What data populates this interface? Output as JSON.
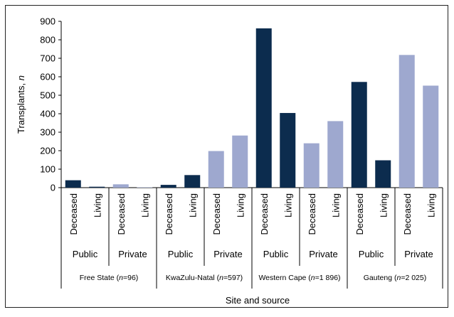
{
  "chart_data": {
    "type": "bar",
    "xlabel": "Site and source",
    "ylabel": "Transplants, n",
    "ylim": [
      0,
      900
    ],
    "yticks": [
      0,
      100,
      200,
      300,
      400,
      500,
      600,
      700,
      800,
      900
    ],
    "grid": false,
    "legend": "none",
    "colors": {
      "public": "#0c2c4e",
      "private": "#9ea8cf"
    },
    "regions": [
      {
        "label_prefix": "Free State (",
        "label_n": "n",
        "label_suffix": "=96)",
        "sectors": [
          {
            "name": "Public",
            "color_key": "public",
            "bars": [
              {
                "source": "Deceased",
                "value": 40
              },
              {
                "source": "Living",
                "value": 5
              }
            ]
          },
          {
            "name": "Private",
            "color_key": "private",
            "bars": [
              {
                "source": "Deceased",
                "value": 18
              },
              {
                "source": "Living",
                "value": 2
              }
            ]
          }
        ]
      },
      {
        "label_prefix": "KwaZulu-Natal (",
        "label_n": "n",
        "label_suffix": "=597)",
        "sectors": [
          {
            "name": "Public",
            "color_key": "public",
            "bars": [
              {
                "source": "Deceased",
                "value": 15
              },
              {
                "source": "Living",
                "value": 68
              }
            ]
          },
          {
            "name": "Private",
            "color_key": "private",
            "bars": [
              {
                "source": "Deceased",
                "value": 198
              },
              {
                "source": "Living",
                "value": 282
              }
            ]
          }
        ]
      },
      {
        "label_prefix": "Western Cape (",
        "label_n": "n",
        "label_suffix": "=1 896)",
        "sectors": [
          {
            "name": "Public",
            "color_key": "public",
            "bars": [
              {
                "source": "Deceased",
                "value": 862
              },
              {
                "source": "Living",
                "value": 404
              }
            ]
          },
          {
            "name": "Private",
            "color_key": "private",
            "bars": [
              {
                "source": "Deceased",
                "value": 240
              },
              {
                "source": "Living",
                "value": 360
              }
            ]
          }
        ]
      },
      {
        "label_prefix": "Gauteng (",
        "label_n": "n",
        "label_suffix": "=2 025)",
        "sectors": [
          {
            "name": "Public",
            "color_key": "public",
            "bars": [
              {
                "source": "Deceased",
                "value": 572
              },
              {
                "source": "Living",
                "value": 148
              }
            ]
          },
          {
            "name": "Private",
            "color_key": "private",
            "bars": [
              {
                "source": "Deceased",
                "value": 718
              },
              {
                "source": "Living",
                "value": 552
              }
            ]
          }
        ]
      }
    ]
  }
}
